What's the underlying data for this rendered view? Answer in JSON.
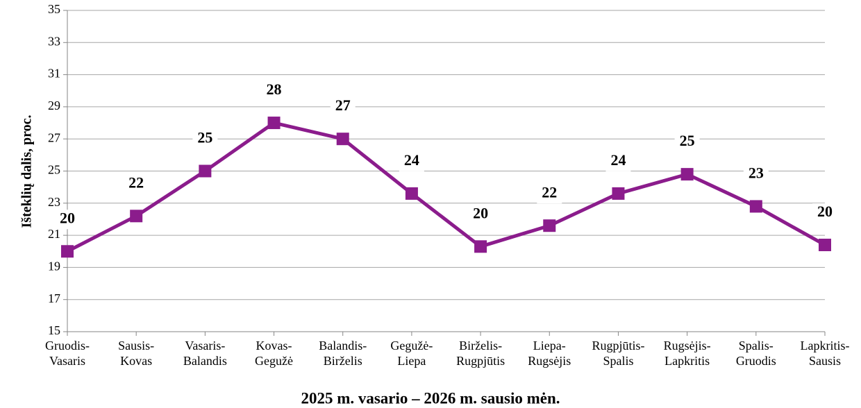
{
  "chart_data": {
    "type": "line",
    "y_label": "Išteklių dalis, proc.",
    "x_label": "2025 m. vasario – 2026 m. sausio mėn.",
    "categories": [
      [
        "Gruodis-",
        "Vasaris"
      ],
      [
        "Sausis-",
        "Kovas"
      ],
      [
        "Vasaris-",
        "Balandis"
      ],
      [
        "Kovas-",
        "Gegužė"
      ],
      [
        "Balandis-",
        "Birželis"
      ],
      [
        "Gegužė-",
        "Liepa"
      ],
      [
        "Birželis-",
        "Rugpjūtis"
      ],
      [
        "Liepa-",
        "Rugsėjis"
      ],
      [
        "Rugpjūtis-",
        "Spalis"
      ],
      [
        "Rugsėjis-",
        "Lapkritis"
      ],
      [
        "Spalis-",
        "Gruodis"
      ],
      [
        "Lapkritis-",
        "Sausis"
      ]
    ],
    "values": [
      20.0,
      22.2,
      25.0,
      28.0,
      27.0,
      23.6,
      20.3,
      21.6,
      23.6,
      24.8,
      22.8,
      20.4
    ],
    "value_labels": [
      "20",
      "22",
      "25",
      "28",
      "27",
      "24",
      "20",
      "22",
      "24",
      "25",
      "23",
      "20"
    ],
    "color": "#8b1c8c",
    "ylim": [
      15,
      35
    ],
    "yticks": [
      15,
      17,
      19,
      21,
      23,
      25,
      27,
      29,
      31,
      33,
      35
    ],
    "grid": true
  }
}
